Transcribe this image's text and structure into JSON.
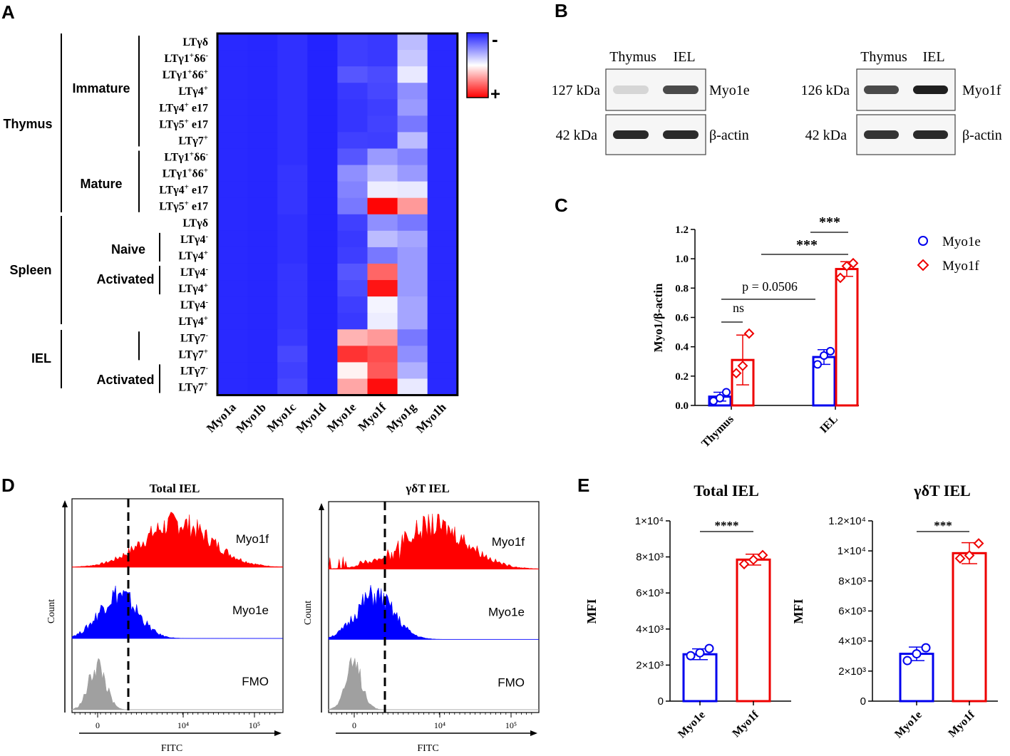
{
  "panels": {
    "a": "A",
    "b": "B",
    "c": "C",
    "d": "D",
    "e": "E"
  },
  "chart_data": [
    {
      "panel": "A",
      "type": "heatmap",
      "columns": [
        "Myo1a",
        "Myo1b",
        "Myo1c",
        "Myo1d",
        "Myo1e",
        "Myo1f",
        "Myo1g",
        "Myo1h"
      ],
      "rows": [
        {
          "label": "LTγδ",
          "sup": ""
        },
        {
          "label": "LTγ1",
          "sup": "+",
          "tail": "δ6",
          "tailsup": "-"
        },
        {
          "label": "LTγ1",
          "sup": "+",
          "tail": "δ6",
          "tailsup": "+"
        },
        {
          "label": "LTγ4",
          "sup": "+"
        },
        {
          "label": "LTγ4",
          "sup": "+",
          "tail": " e17"
        },
        {
          "label": "LTγ5",
          "sup": "+",
          "tail": " e17"
        },
        {
          "label": "LTγ7",
          "sup": "+"
        },
        {
          "label": "LTγ1",
          "sup": "+",
          "tail": "δ6",
          "tailsup": "-"
        },
        {
          "label": "LTγ1",
          "sup": "+",
          "tail": "δ6",
          "tailsup": "+"
        },
        {
          "label": "LTγ4",
          "sup": "+",
          "tail": " e17"
        },
        {
          "label": "LTγ5",
          "sup": "+",
          "tail": " e17"
        },
        {
          "label": "LTγδ",
          "sup": ""
        },
        {
          "label": "LTγ4",
          "sup": "-"
        },
        {
          "label": "LTγ4",
          "sup": "+"
        },
        {
          "label": "LTγ4",
          "sup": "-"
        },
        {
          "label": "LTγ4",
          "sup": "+"
        },
        {
          "label": "LTγ4",
          "sup": "-"
        },
        {
          "label": "LTγ4",
          "sup": "+"
        },
        {
          "label": "LTγ7",
          "sup": "-"
        },
        {
          "label": "LTγ7",
          "sup": "+"
        },
        {
          "label": "LTγ7",
          "sup": "-"
        },
        {
          "label": "LTγ7",
          "sup": "+"
        }
      ],
      "values": [
        [
          -0.95,
          -0.96,
          -0.92,
          -0.98,
          -0.86,
          -0.88,
          -0.3,
          -0.95
        ],
        [
          -0.95,
          -0.96,
          -0.92,
          -0.98,
          -0.86,
          -0.88,
          -0.25,
          -0.95
        ],
        [
          -0.95,
          -0.96,
          -0.92,
          -0.98,
          -0.75,
          -0.8,
          -0.1,
          -0.95
        ],
        [
          -0.95,
          -0.96,
          -0.92,
          -0.98,
          -0.88,
          -0.82,
          -0.5,
          -0.95
        ],
        [
          -0.95,
          -0.96,
          -0.92,
          -0.98,
          -0.9,
          -0.86,
          -0.45,
          -0.95
        ],
        [
          -0.95,
          -0.96,
          -0.92,
          -0.98,
          -0.9,
          -0.84,
          -0.6,
          -0.95
        ],
        [
          -0.95,
          -0.96,
          -0.92,
          -0.98,
          -0.85,
          -0.86,
          -0.3,
          -0.95
        ],
        [
          -0.95,
          -0.96,
          -0.92,
          -0.98,
          -0.75,
          -0.45,
          -0.55,
          -0.95
        ],
        [
          -0.95,
          -0.96,
          -0.9,
          -0.98,
          -0.5,
          -0.3,
          -0.45,
          -0.95
        ],
        [
          -0.95,
          -0.96,
          -0.9,
          -0.98,
          -0.55,
          -0.08,
          -0.1,
          -0.95
        ],
        [
          -0.95,
          -0.96,
          -0.9,
          -0.98,
          -0.6,
          0.98,
          0.4,
          -0.95
        ],
        [
          -0.95,
          -0.96,
          -0.92,
          -0.98,
          -0.85,
          -0.5,
          -0.6,
          -0.95
        ],
        [
          -0.95,
          -0.96,
          -0.92,
          -0.98,
          -0.88,
          -0.3,
          -0.4,
          -0.95
        ],
        [
          -0.95,
          -0.96,
          -0.92,
          -0.98,
          -0.86,
          -0.6,
          -0.45,
          -0.95
        ],
        [
          -0.95,
          -0.96,
          -0.9,
          -0.98,
          -0.75,
          0.6,
          -0.45,
          -0.95
        ],
        [
          -0.95,
          -0.96,
          -0.9,
          -0.98,
          -0.8,
          0.92,
          -0.45,
          -0.95
        ],
        [
          -0.95,
          -0.96,
          -0.9,
          -0.98,
          -0.86,
          -0.05,
          -0.4,
          -0.95
        ],
        [
          -0.95,
          -0.96,
          -0.9,
          -0.98,
          -0.88,
          -0.08,
          -0.4,
          -0.95
        ],
        [
          -0.95,
          -0.96,
          -0.88,
          -0.98,
          0.3,
          0.4,
          -0.6,
          -0.95
        ],
        [
          -0.95,
          -0.96,
          -0.82,
          -0.98,
          0.8,
          0.7,
          -0.5,
          -0.95
        ],
        [
          -0.95,
          -0.96,
          -0.85,
          -0.98,
          0.05,
          0.65,
          -0.35,
          -0.95
        ],
        [
          -0.95,
          -0.96,
          -0.82,
          -0.98,
          0.35,
          0.95,
          -0.1,
          -0.95
        ]
      ],
      "tissues": [
        "Thymus",
        "Spleen",
        "IEL"
      ],
      "subgroups": [
        "Immature",
        "Mature",
        "Naive",
        "Activated",
        "Activated"
      ],
      "legend": {
        "low": "-",
        "high": "+"
      },
      "colors": {
        "low": "#1e1eff",
        "mid": "#ffffff",
        "high": "#ff0000"
      }
    },
    {
      "panel": "B",
      "type": "blot",
      "blots": [
        {
          "lanes": [
            "Thymus",
            "IEL"
          ],
          "target": "Myo1e",
          "target_kda": "127 kDa",
          "loading": "β-actin",
          "loading_kda": "42 kDa",
          "target_intensity": [
            0.1,
            0.75
          ],
          "loading_intensity": [
            0.9,
            0.9
          ]
        },
        {
          "lanes": [
            "Thymus",
            "IEL"
          ],
          "target": "Myo1f",
          "target_kda": "126 kDa",
          "loading": "β-actin",
          "loading_kda": "42 kDa",
          "target_intensity": [
            0.75,
            0.95
          ],
          "loading_intensity": [
            0.85,
            0.9
          ]
        }
      ]
    },
    {
      "panel": "C",
      "type": "bar",
      "ylabel": "Myo1/β-actin",
      "ylim": [
        0,
        1.2
      ],
      "yticks": [
        "0.0",
        "0.2",
        "0.4",
        "0.6",
        "0.8",
        "1.0",
        "1.2"
      ],
      "categories": [
        "Thymus",
        "IEL"
      ],
      "series": [
        {
          "name": "Myo1e",
          "color": "#0000ee",
          "values": [
            0.06,
            0.33
          ],
          "sd": [
            0.03,
            0.05
          ],
          "points": [
            [
              0.03,
              0.05,
              0.09
            ],
            [
              0.28,
              0.34,
              0.37
            ]
          ]
        },
        {
          "name": "Myo1f",
          "color": "#ee0000",
          "values": [
            0.31,
            0.93
          ],
          "sd": [
            0.17,
            0.05
          ],
          "points": [
            [
              0.22,
              0.27,
              0.49
            ],
            [
              0.87,
              0.95,
              0.97
            ]
          ]
        }
      ],
      "annotations": [
        {
          "text": "ns"
        },
        {
          "text": "p = 0.0506"
        },
        {
          "text": "***"
        },
        {
          "text": "***"
        }
      ]
    },
    {
      "panel": "D",
      "type": "histogram",
      "plots": [
        {
          "title": "Total IEL",
          "xlabel": "FITC",
          "ylabel": "Count",
          "xticks": [
            "0",
            "10⁴",
            "10⁵"
          ],
          "tracks": [
            "Myo1f",
            "Myo1e",
            "FMO"
          ]
        },
        {
          "title": "γδT IEL",
          "xlabel": "FITC",
          "ylabel": "Count",
          "xticks": [
            "0",
            "10⁴",
            "10⁵"
          ],
          "tracks": [
            "Myo1f",
            "Myo1e",
            "FMO"
          ]
        }
      ],
      "track_colors": {
        "Myo1f": "#ff0000",
        "Myo1e": "#0000ff",
        "FMO": "#a0a0a0"
      }
    },
    {
      "panel": "E",
      "type": "bar",
      "plots": [
        {
          "title": "Total IEL",
          "ylabel": "MFI",
          "ylim": [
            0,
            10000
          ],
          "yticks": [
            "0",
            "2×10³",
            "4×10³",
            "6×10³",
            "8×10³",
            "1×10⁴"
          ],
          "categories": [
            "Myo1e",
            "Myo1f"
          ],
          "values": [
            2600,
            7850
          ],
          "sd": [
            300,
            300
          ],
          "points": [
            [
              2520,
              2680,
              2920
            ],
            [
              7600,
              7840,
              8100
            ]
          ],
          "annotation": "****"
        },
        {
          "title": "γδT IEL",
          "ylabel": "MFI",
          "ylim": [
            0,
            12000
          ],
          "yticks": [
            "0",
            "2×10³",
            "4×10³",
            "6×10³",
            "8×10³",
            "1×10⁴",
            "1.2×10⁴"
          ],
          "categories": [
            "Myo1e",
            "Myo1f"
          ],
          "values": [
            3150,
            9850
          ],
          "sd": [
            450,
            700
          ],
          "points": [
            [
              2700,
              3150,
              3550
            ],
            [
              9500,
              9700,
              10500
            ]
          ],
          "annotation": "***"
        }
      ],
      "colors": [
        "#0000ee",
        "#ee0000"
      ]
    }
  ]
}
